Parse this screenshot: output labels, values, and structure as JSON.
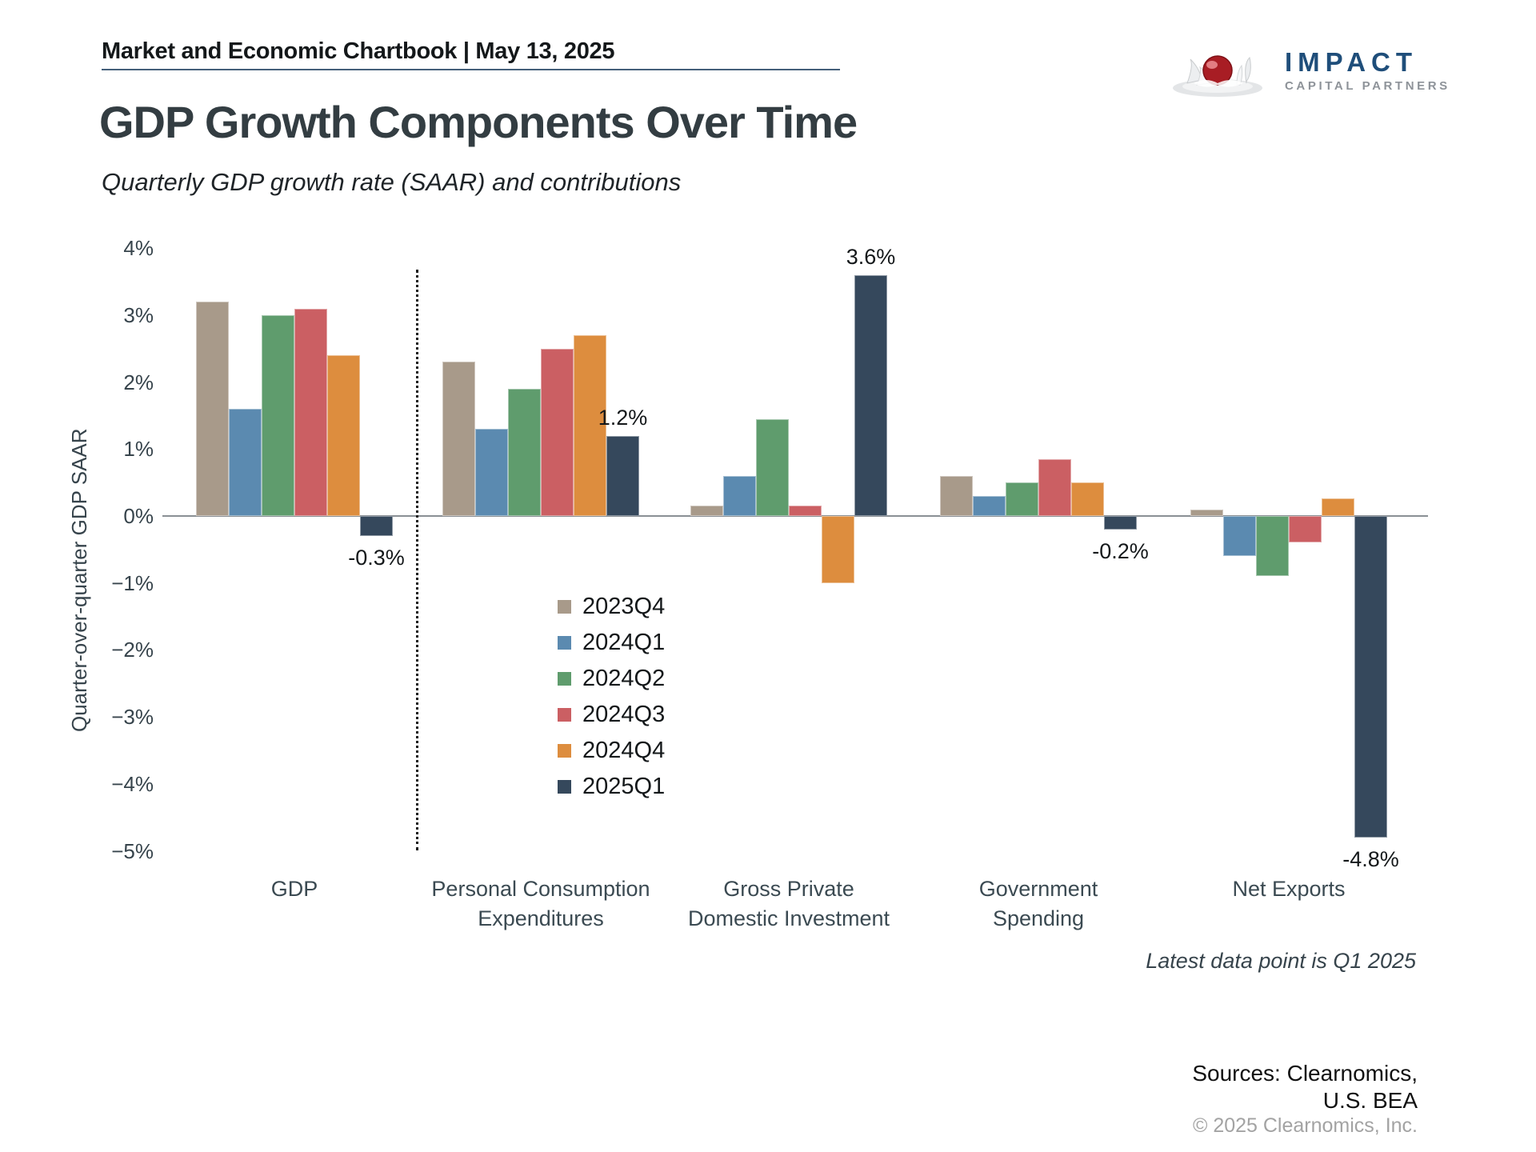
{
  "header": {
    "breadcrumb": "Market and Economic Chartbook | May 13, 2025",
    "title": "GDP Growth Components Over Time",
    "subtitle": "Quarterly GDP growth rate (SAAR) and contributions"
  },
  "logo": {
    "brand": "IMPACT",
    "tagline": "CAPITAL PARTNERS",
    "brand_color": "#1f4e7a",
    "tagline_color": "#8e9399"
  },
  "chart_data": {
    "type": "bar",
    "title": "GDP Growth Components Over Time",
    "subtitle": "Quarterly GDP growth rate (SAAR) and contributions",
    "ylabel": "Quarter-over-quarter GDP SAAR",
    "ylim": [
      -5,
      4
    ],
    "grid": false,
    "legend_position": "inside-left-middle",
    "yticks": [
      "4%",
      "3%",
      "2%",
      "1%",
      "0%",
      "−1%",
      "−2%",
      "−3%",
      "−4%",
      "−5%"
    ],
    "ytick_values": [
      4,
      3,
      2,
      1,
      0,
      -1,
      -2,
      -3,
      -4,
      -5
    ],
    "categories": [
      [
        "GDP"
      ],
      [
        "Personal Consumption",
        "Expenditures"
      ],
      [
        "Gross Private",
        "Domestic Investment"
      ],
      [
        "Government",
        "Spending"
      ],
      [
        "Net Exports"
      ]
    ],
    "separator_after_category_index": 0,
    "series": [
      {
        "name": "2023Q4",
        "color": "#a89a8a",
        "values": [
          3.2,
          2.3,
          0.15,
          0.6,
          0.1
        ]
      },
      {
        "name": "2024Q1",
        "color": "#5b8ab0",
        "values": [
          1.6,
          1.3,
          0.6,
          0.3,
          -0.6
        ]
      },
      {
        "name": "2024Q2",
        "color": "#5f9c6d",
        "values": [
          3.0,
          1.9,
          1.45,
          0.5,
          -0.9
        ]
      },
      {
        "name": "2024Q3",
        "color": "#cb5f63",
        "values": [
          3.1,
          2.5,
          0.15,
          0.85,
          -0.4
        ]
      },
      {
        "name": "2024Q4",
        "color": "#dd8d3e",
        "values": [
          2.4,
          2.7,
          -1.0,
          0.5,
          0.26
        ]
      },
      {
        "name": "2025Q1",
        "color": "#35485c",
        "values": [
          -0.3,
          1.2,
          3.6,
          -0.2,
          -4.8
        ],
        "labels": [
          "-0.3%",
          "1.2%",
          "3.6%",
          "-0.2%",
          "-4.8%"
        ]
      }
    ]
  },
  "notes": {
    "latest": "Latest data point is Q1 2025",
    "sources_line1": "Sources: Clearnomics,",
    "sources_line2": "U.S. BEA",
    "copyright": "© 2025 Clearnomics, Inc."
  }
}
